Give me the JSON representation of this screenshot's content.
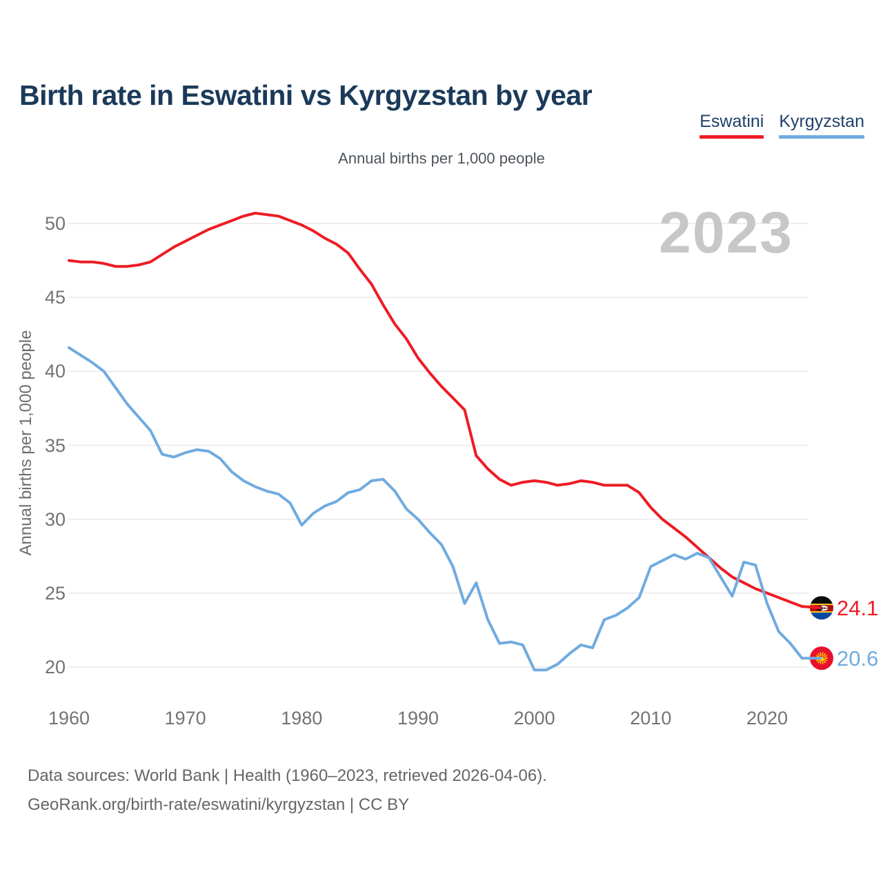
{
  "title": "Birth rate in Eswatini vs Kyrgyzstan by year",
  "subtitle": "Annual births per 1,000 people",
  "watermark": "2023",
  "legend": {
    "eswatini": {
      "label": "Eswatini",
      "color": "#ed1c24"
    },
    "kyrgyzstan": {
      "label": "Kyrgyzstan",
      "color": "#70abdf"
    }
  },
  "y_axis_label": "Annual births per 1,000 people",
  "end_labels": {
    "eswatini": "24.1",
    "kyrgyzstan": "20.6"
  },
  "footer": {
    "line1": "Data sources: World Bank | Health (1960–2023, retrieved 2026-04-06).",
    "line2": "GeoRank.org/birth-rate/eswatini/kyrgyzstan | CC BY"
  },
  "chart_data": {
    "type": "line",
    "title": "Birth rate in Eswatini vs Kyrgyzstan by year",
    "subtitle": "Annual births per 1,000 people",
    "ylabel": "Annual births per 1,000 people",
    "grid": "horizontal",
    "legend_position": "top-right",
    "ylim": [
      18.5,
      52
    ],
    "xlim": [
      1960,
      2023
    ],
    "yticks": [
      50,
      45,
      40,
      35,
      30,
      25,
      20
    ],
    "xticks": [
      1960,
      1970,
      1980,
      1990,
      2000,
      2010,
      2020
    ],
    "x": [
      1960,
      1961,
      1962,
      1963,
      1964,
      1965,
      1966,
      1967,
      1968,
      1969,
      1970,
      1971,
      1972,
      1973,
      1974,
      1975,
      1976,
      1977,
      1978,
      1979,
      1980,
      1981,
      1982,
      1983,
      1984,
      1985,
      1986,
      1987,
      1988,
      1989,
      1990,
      1991,
      1992,
      1993,
      1994,
      1995,
      1996,
      1997,
      1998,
      1999,
      2000,
      2001,
      2002,
      2003,
      2004,
      2005,
      2006,
      2007,
      2008,
      2009,
      2010,
      2011,
      2012,
      2013,
      2014,
      2015,
      2016,
      2017,
      2018,
      2019,
      2020,
      2021,
      2022,
      2023
    ],
    "series": [
      {
        "name": "Eswatini",
        "color": "#ed1c24",
        "end_label": "24.1",
        "values": [
          47.5,
          47.4,
          47.4,
          47.3,
          47.1,
          47.1,
          47.2,
          47.4,
          47.9,
          48.4,
          48.8,
          49.2,
          49.6,
          49.9,
          50.2,
          50.5,
          50.7,
          50.6,
          50.5,
          50.2,
          49.9,
          49.5,
          49.0,
          48.6,
          48.0,
          46.9,
          45.9,
          44.5,
          43.2,
          42.2,
          40.9,
          39.9,
          39.0,
          38.2,
          37.4,
          34.3,
          33.4,
          32.7,
          32.3,
          32.5,
          32.6,
          32.5,
          32.3,
          32.4,
          32.6,
          32.5,
          32.3,
          32.3,
          32.3,
          31.8,
          30.8,
          30.0,
          29.4,
          28.8,
          28.1,
          27.4,
          26.7,
          26.1,
          25.7,
          25.3,
          25.0,
          24.7,
          24.4,
          24.1
        ]
      },
      {
        "name": "Kyrgyzstan",
        "color": "#70abdf",
        "end_label": "20.6",
        "values": [
          41.6,
          41.1,
          40.6,
          40.0,
          38.9,
          37.8,
          36.9,
          36.0,
          34.4,
          34.2,
          34.5,
          34.7,
          34.6,
          34.1,
          33.2,
          32.6,
          32.2,
          31.9,
          31.7,
          31.1,
          29.6,
          30.4,
          30.9,
          31.2,
          31.8,
          32.0,
          32.6,
          32.7,
          31.9,
          30.7,
          30.0,
          29.1,
          28.3,
          26.8,
          24.3,
          25.7,
          23.2,
          21.6,
          21.7,
          21.5,
          19.8,
          19.8,
          20.2,
          20.9,
          21.5,
          21.3,
          23.2,
          23.5,
          24.0,
          24.7,
          26.8,
          27.2,
          27.6,
          27.3,
          27.7,
          27.4,
          26.1,
          24.8,
          27.1,
          26.9,
          24.3,
          22.4,
          21.6,
          20.6
        ]
      }
    ]
  }
}
